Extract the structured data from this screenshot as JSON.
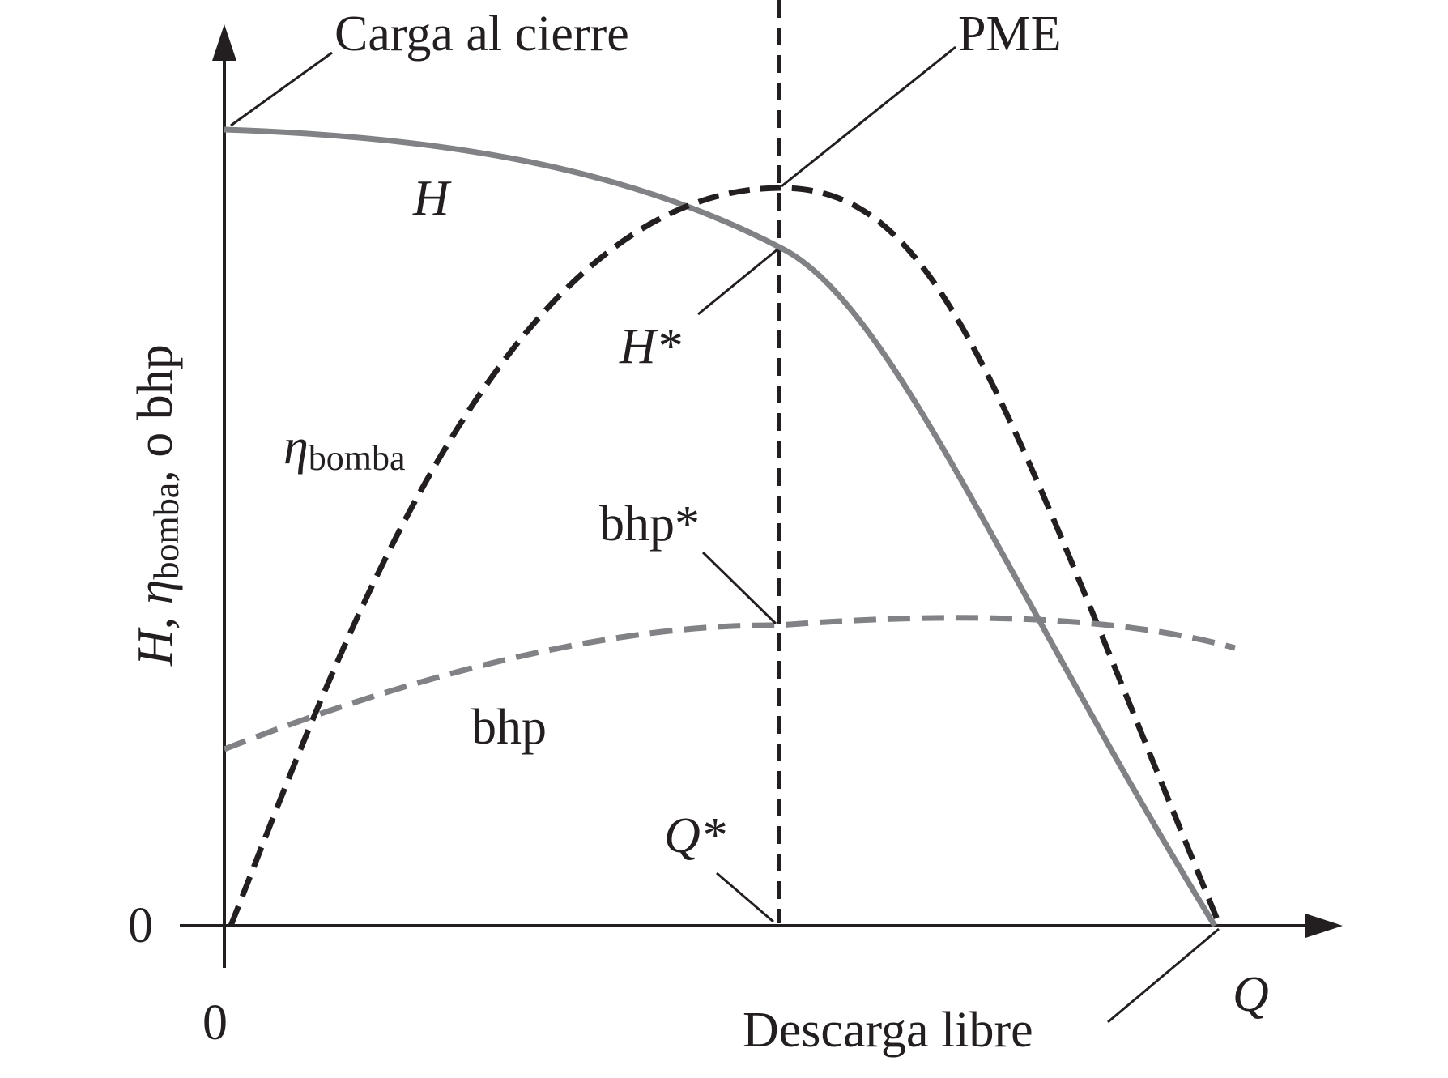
{
  "figure": {
    "labels": {
      "shutoff_head": "Carga al cierre",
      "bep": "PME",
      "head_curve": "H",
      "head_star": "H*",
      "efficiency_symbol": "η",
      "efficiency_subscript": "bomba",
      "bhp_star": "bhp*",
      "bhp_curve": "bhp",
      "q_star": "Q*",
      "free_delivery": "Descarga libre",
      "x_axis": "Q",
      "x_origin": "0",
      "y_origin": "0",
      "y_axis_head": "H",
      "y_axis_sep1": ", ",
      "y_axis_eta": "η",
      "y_axis_eta_sub": "bomba",
      "y_axis_rest": ", o bhp"
    },
    "colors": {
      "axis": "#231f20",
      "head_curve": "#818285",
      "efficiency_curve": "#231f20",
      "bhp_curve": "#818285"
    }
  }
}
